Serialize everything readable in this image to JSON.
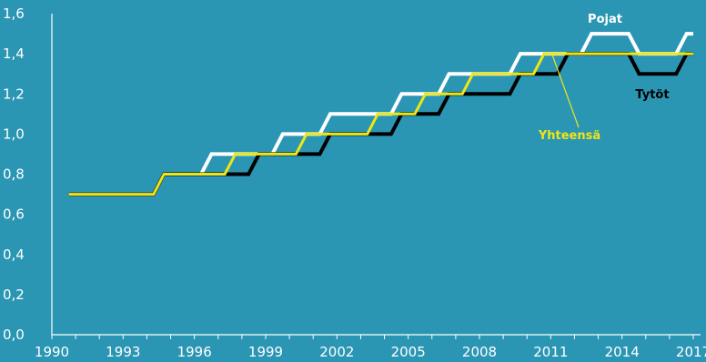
{
  "chart_data": {
    "type": "line",
    "x": [
      1991,
      1992,
      1993,
      1994,
      1995,
      1996,
      1997,
      1998,
      1999,
      2000,
      2001,
      2002,
      2003,
      2004,
      2005,
      2006,
      2007,
      2008,
      2009,
      2010,
      2011,
      2012,
      2013,
      2014,
      2015,
      2016,
      2017
    ],
    "xticks": [
      "1990",
      "1993",
      "1996",
      "1999",
      "2002",
      "2005",
      "2008",
      "2011",
      "2014",
      "2017"
    ],
    "yticks": [
      "0,0",
      "0,2",
      "0,4",
      "0,6",
      "0,8",
      "1,0",
      "1,2",
      "1,4",
      "1,6"
    ],
    "xlim": [
      1990,
      2017
    ],
    "ylim": [
      0,
      1.6
    ],
    "grid": false,
    "series": [
      {
        "name": "Pojat",
        "color": "#ffffff",
        "values": [
          0.7,
          0.7,
          0.7,
          0.7,
          0.8,
          0.8,
          0.9,
          0.9,
          0.9,
          1.0,
          1.0,
          1.1,
          1.1,
          1.1,
          1.2,
          1.2,
          1.3,
          1.3,
          1.3,
          1.4,
          1.4,
          1.4,
          1.5,
          1.5,
          1.4,
          1.4,
          1.5
        ]
      },
      {
        "name": "Tytöt",
        "color": "#000000",
        "values": [
          0.7,
          0.7,
          0.7,
          0.7,
          0.8,
          0.8,
          0.8,
          0.8,
          0.9,
          0.9,
          0.9,
          1.0,
          1.0,
          1.0,
          1.1,
          1.1,
          1.2,
          1.2,
          1.2,
          1.3,
          1.3,
          1.4,
          1.4,
          1.4,
          1.3,
          1.3,
          1.4
        ]
      },
      {
        "name": "Yhteensä",
        "color": "#f0e614",
        "values": [
          0.7,
          0.7,
          0.7,
          0.7,
          0.8,
          0.8,
          0.8,
          0.9,
          0.9,
          0.9,
          1.0,
          1.0,
          1.0,
          1.1,
          1.1,
          1.2,
          1.2,
          1.3,
          1.3,
          1.3,
          1.4,
          1.4,
          1.4,
          1.4,
          1.4,
          1.4,
          1.4
        ]
      }
    ]
  }
}
